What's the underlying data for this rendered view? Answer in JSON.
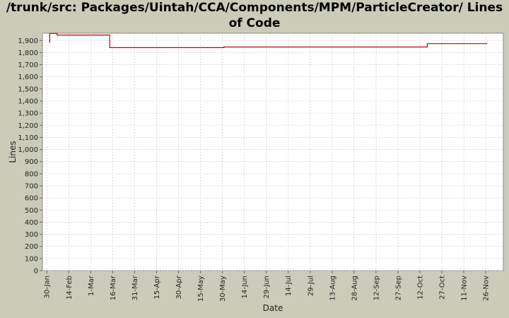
{
  "chart_data": {
    "type": "line",
    "title": "/trunk/src: Packages/Uintah/CCA/Components/MPM/ParticleCreator/ Lines of Code",
    "xlabel": "Date",
    "ylabel": "Lines",
    "ylim": [
      0,
      1960
    ],
    "yticks": [
      0,
      100,
      200,
      300,
      400,
      500,
      600,
      700,
      800,
      900,
      1000,
      1100,
      1200,
      1300,
      1400,
      1500,
      1600,
      1700,
      1800,
      1900
    ],
    "ytick_labels": [
      "0",
      "100",
      "200",
      "300",
      "400",
      "500",
      "600",
      "700",
      "800",
      "900",
      "1,000",
      "1,100",
      "1,200",
      "1,300",
      "1,400",
      "1,500",
      "1,600",
      "1,700",
      "1,800",
      "1,900"
    ],
    "xlim": [
      "2005-01-27",
      "2005-12-08"
    ],
    "xticks": [
      {
        "date": "2005-01-30",
        "label": "30-Jan"
      },
      {
        "date": "2005-02-14",
        "label": "14-Feb"
      },
      {
        "date": "2005-03-01",
        "label": "1-Mar"
      },
      {
        "date": "2005-03-16",
        "label": "16-Mar"
      },
      {
        "date": "2005-03-31",
        "label": "31-Mar"
      },
      {
        "date": "2005-04-15",
        "label": "15-Apr"
      },
      {
        "date": "2005-04-30",
        "label": "30-Apr"
      },
      {
        "date": "2005-05-15",
        "label": "15-May"
      },
      {
        "date": "2005-05-30",
        "label": "30-May"
      },
      {
        "date": "2005-06-14",
        "label": "14-Jun"
      },
      {
        "date": "2005-06-29",
        "label": "29-Jun"
      },
      {
        "date": "2005-07-14",
        "label": "14-Jul"
      },
      {
        "date": "2005-07-29",
        "label": "29-Jul"
      },
      {
        "date": "2005-08-13",
        "label": "13-Aug"
      },
      {
        "date": "2005-08-28",
        "label": "28-Aug"
      },
      {
        "date": "2005-09-12",
        "label": "12-Sep"
      },
      {
        "date": "2005-09-27",
        "label": "27-Sep"
      },
      {
        "date": "2005-10-12",
        "label": "12-Oct"
      },
      {
        "date": "2005-10-27",
        "label": "27-Oct"
      },
      {
        "date": "2005-11-11",
        "label": "11-Nov"
      },
      {
        "date": "2005-11-26",
        "label": "26-Nov"
      }
    ],
    "grid": true,
    "colors": {
      "line": "#c00000",
      "plot_bg": "#ffffff",
      "grid": "#d0d0d0",
      "page_bg": "#cbcbb9"
    },
    "series": [
      {
        "points": [
          {
            "x": "2005-02-01",
            "y": 1880
          },
          {
            "x": "2005-02-01",
            "y": 1958
          },
          {
            "x": "2005-02-06",
            "y": 1958
          },
          {
            "x": "2005-02-06",
            "y": 1945
          },
          {
            "x": "2005-03-14",
            "y": 1945
          },
          {
            "x": "2005-03-14",
            "y": 1841
          },
          {
            "x": "2005-05-31",
            "y": 1841
          },
          {
            "x": "2005-05-31",
            "y": 1846
          },
          {
            "x": "2005-10-17",
            "y": 1846
          },
          {
            "x": "2005-10-17",
            "y": 1874
          },
          {
            "x": "2005-11-27",
            "y": 1874
          }
        ]
      }
    ]
  }
}
